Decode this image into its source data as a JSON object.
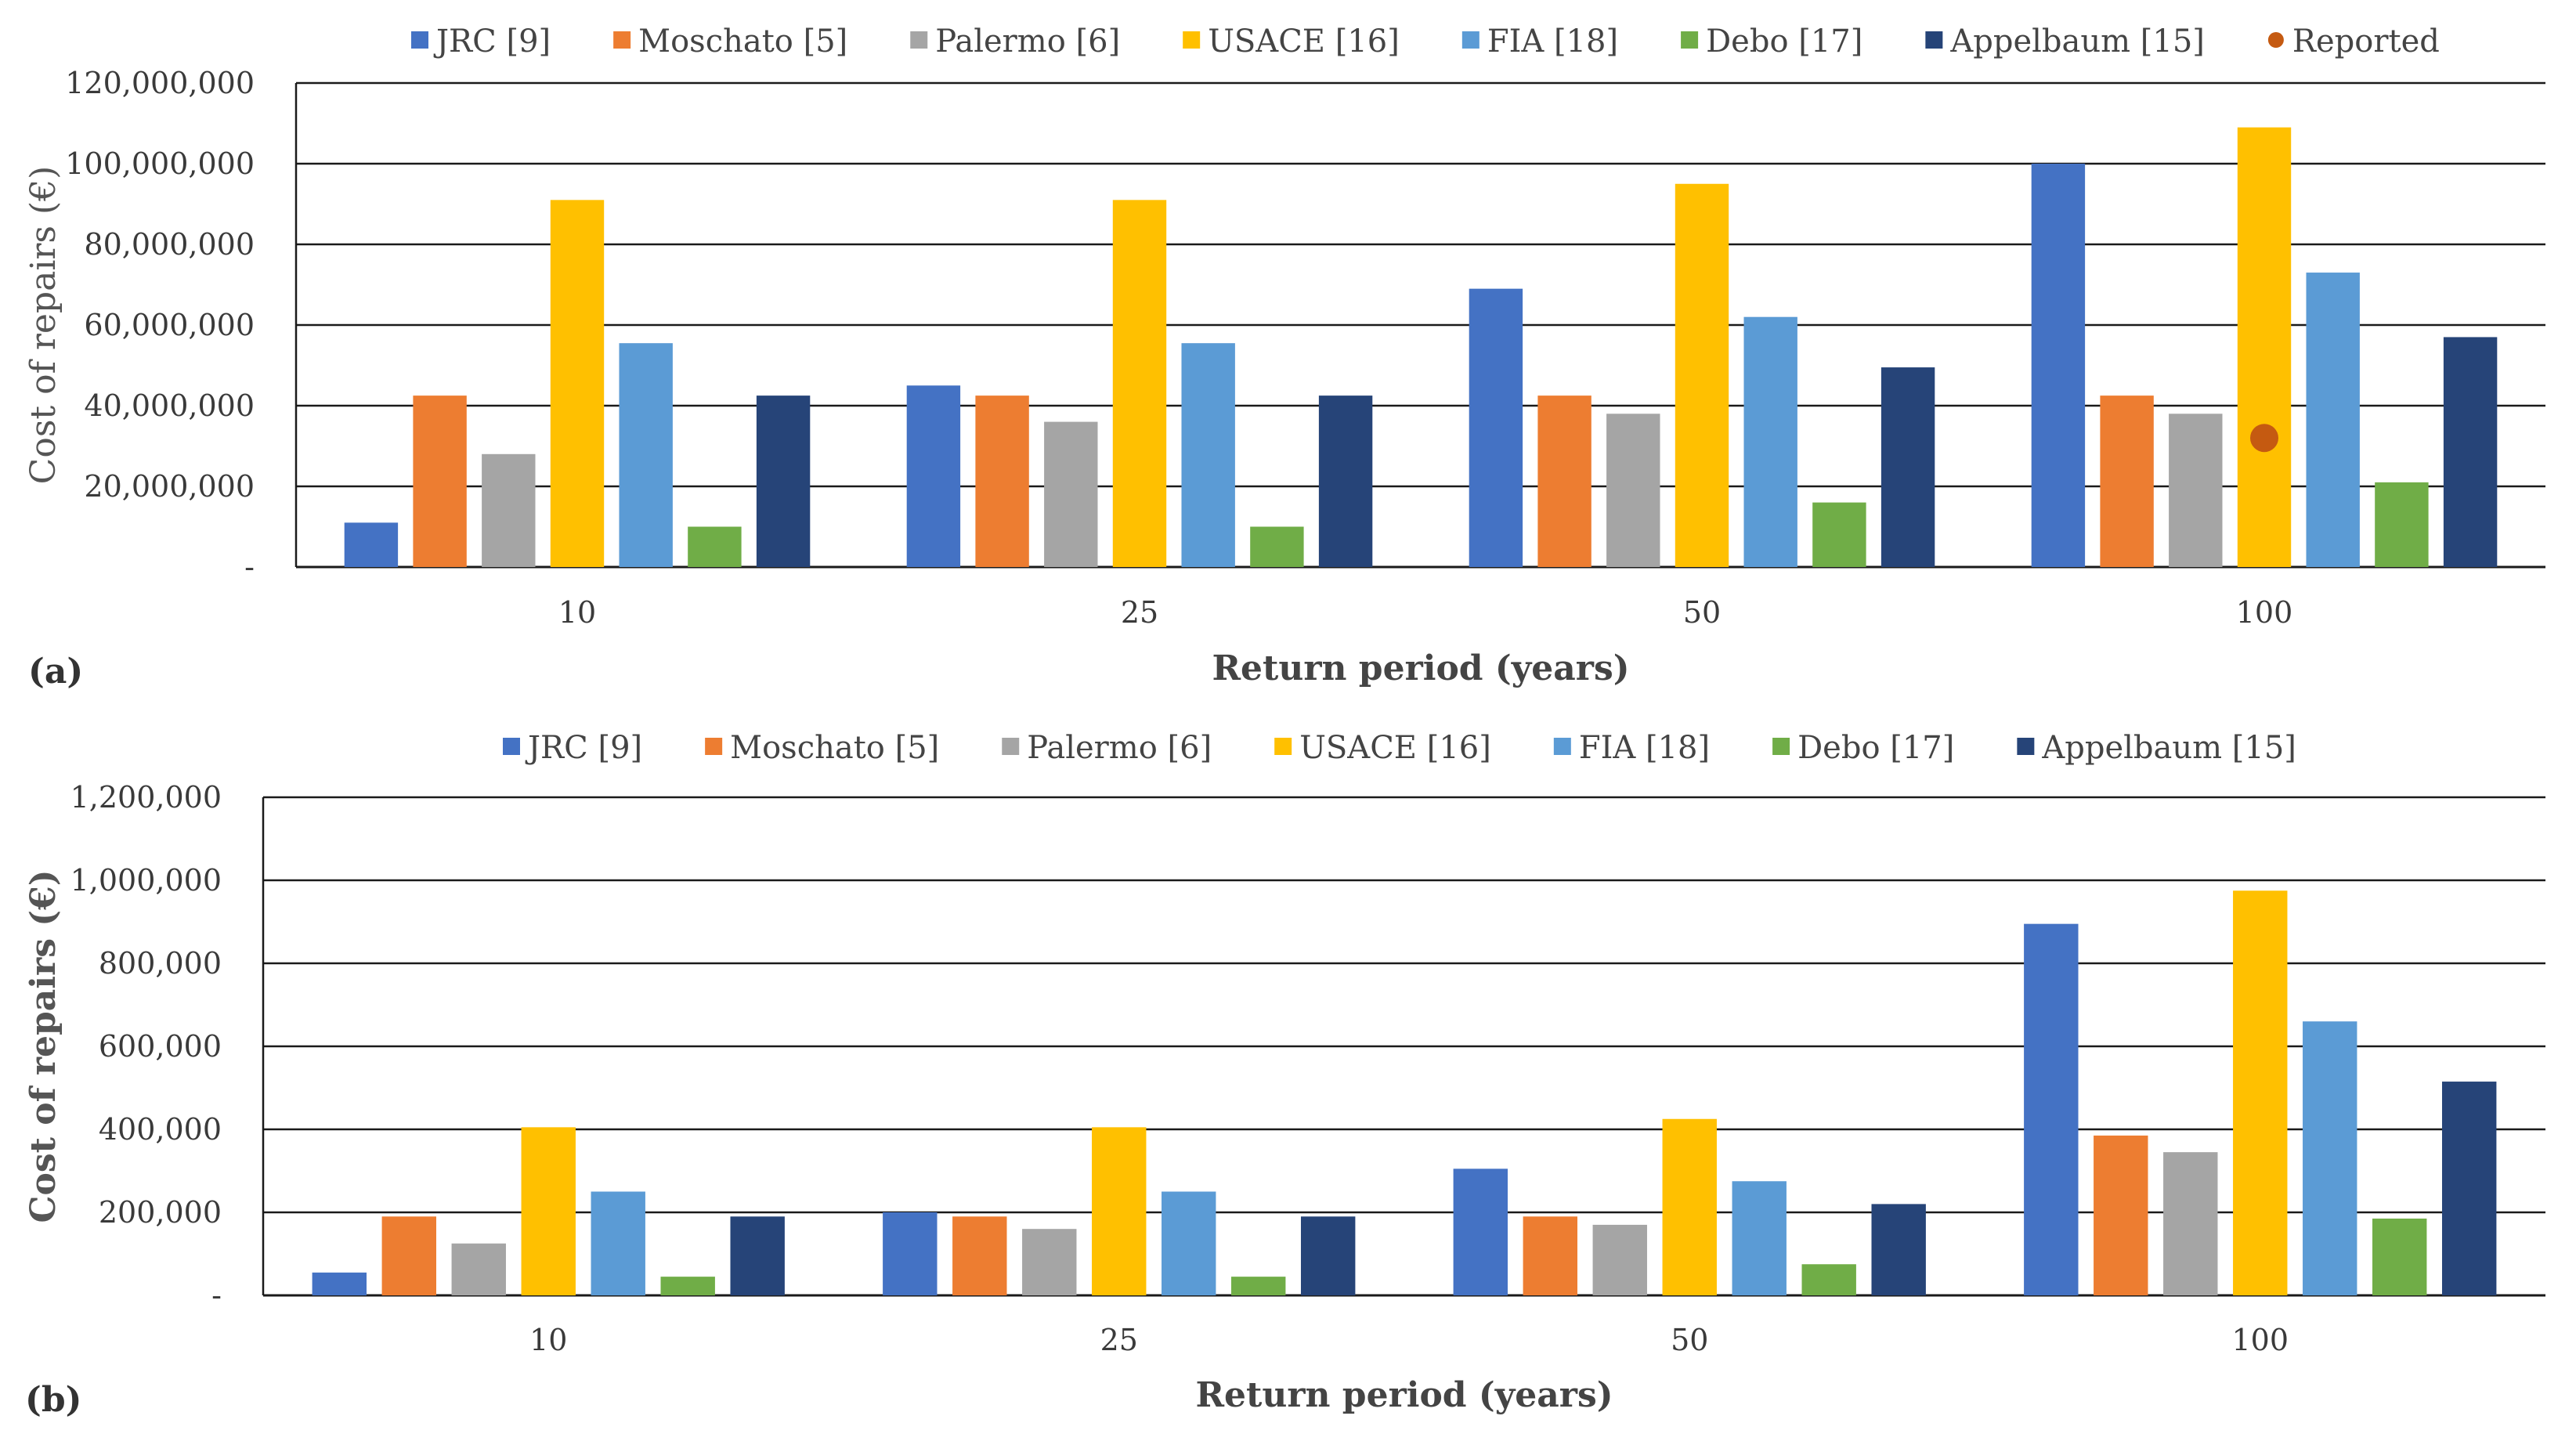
{
  "series_colors": {
    "JRC [9]": "#4472C4",
    "Moschato [5]": "#ED7D31",
    "Palermo [6]": "#A5A5A5",
    "USACE [16]": "#FFC000",
    "FIA [18]": "#5B9BD5",
    "Debo [17]": "#70AD47",
    "Appelbaum [15]": "#264478"
  },
  "reported_color": "#C55A11",
  "chart_data": [
    {
      "type": "bar",
      "panel_label": "(a)",
      "title": "",
      "xlabel": "Return period (years)",
      "ylabel": "Cost of repairs (€)",
      "ylim": [
        0,
        120000000
      ],
      "yticks": [
        0,
        20000000,
        40000000,
        60000000,
        80000000,
        100000000,
        120000000
      ],
      "ytick_labels": [
        "-",
        "20,000,000",
        "40,000,000",
        "60,000,000",
        "80,000,000",
        "100,000,000",
        "120,000,000"
      ],
      "grid": true,
      "legend": "top",
      "categories": [
        "10",
        "25",
        "50",
        "100"
      ],
      "series": [
        {
          "name": "JRC [9]",
          "values": [
            11000000,
            45000000,
            69000000,
            100000000
          ]
        },
        {
          "name": "Moschato [5]",
          "values": [
            42500000,
            42500000,
            42500000,
            42500000
          ]
        },
        {
          "name": "Palermo [6]",
          "values": [
            28000000,
            36000000,
            38000000,
            38000000
          ]
        },
        {
          "name": "USACE [16]",
          "values": [
            91000000,
            91000000,
            95000000,
            109000000
          ]
        },
        {
          "name": "FIA [18]",
          "values": [
            55500000,
            55500000,
            62000000,
            73000000
          ]
        },
        {
          "name": "Debo [17]",
          "values": [
            10000000,
            10000000,
            16000000,
            21000000
          ]
        },
        {
          "name": "Appelbaum [15]",
          "values": [
            42500000,
            42500000,
            49500000,
            57000000
          ]
        }
      ],
      "reported": {
        "name": "Reported",
        "category": "100",
        "value": 32000000
      }
    },
    {
      "type": "bar",
      "panel_label": "(b)",
      "title": "",
      "xlabel": "Return period (years)",
      "ylabel": "Cost of repairs (€)",
      "ylim": [
        0,
        1200000
      ],
      "yticks": [
        0,
        200000,
        400000,
        600000,
        800000,
        1000000,
        1200000
      ],
      "ytick_labels": [
        "-",
        "200,000",
        "400,000",
        "600,000",
        "800,000",
        "1,000,000",
        "1,200,000"
      ],
      "grid": true,
      "legend": "top",
      "categories": [
        "10",
        "25",
        "50",
        "100"
      ],
      "series": [
        {
          "name": "JRC [9]",
          "values": [
            55000,
            200000,
            305000,
            895000
          ]
        },
        {
          "name": "Moschato [5]",
          "values": [
            190000,
            190000,
            190000,
            385000
          ]
        },
        {
          "name": "Palermo [6]",
          "values": [
            125000,
            160000,
            170000,
            345000
          ]
        },
        {
          "name": "USACE [16]",
          "values": [
            405000,
            405000,
            425000,
            975000
          ]
        },
        {
          "name": "FIA [18]",
          "values": [
            250000,
            250000,
            275000,
            660000
          ]
        },
        {
          "name": "Debo [17]",
          "values": [
            45000,
            45000,
            75000,
            185000
          ]
        },
        {
          "name": "Appelbaum [15]",
          "values": [
            190000,
            190000,
            220000,
            515000
          ]
        }
      ]
    }
  ]
}
